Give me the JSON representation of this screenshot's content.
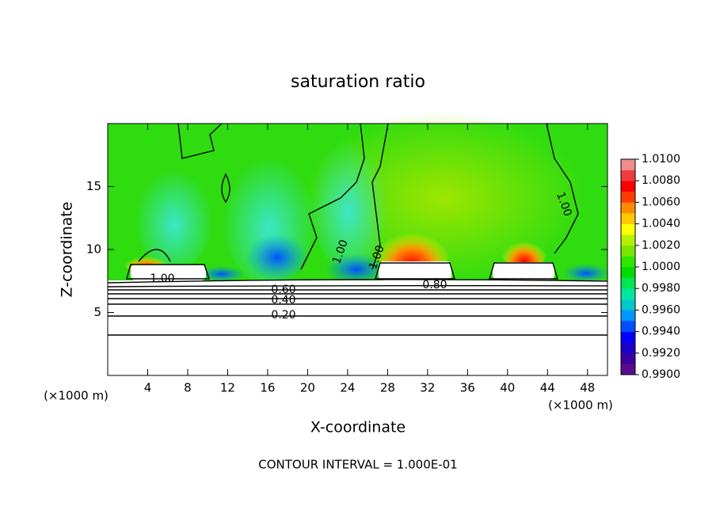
{
  "chart_data": {
    "type": "heatmap",
    "title": "saturation ratio",
    "x_label": "X-coordinate",
    "y_label": "Z-coordinate",
    "x_unit": "(×1000 m)",
    "footer": "CONTOUR INTERVAL = 1.000E-01",
    "xlim": [
      0,
      50
    ],
    "xticks": [
      4,
      8,
      12,
      16,
      20,
      24,
      28,
      32,
      36,
      40,
      44,
      48
    ],
    "ylim": [
      0,
      20
    ],
    "yticks": [
      5,
      10,
      15
    ],
    "contour_labels": [
      "1.00",
      "0.80",
      "0.60",
      "0.40",
      "0.20",
      "1.00",
      "1.00",
      "1.00"
    ],
    "clim": [
      0.99,
      1.01
    ],
    "cticks": [
      {
        "value": 0.99,
        "label": "0.9900"
      },
      {
        "value": 0.992,
        "label": "0.9920"
      },
      {
        "value": 0.994,
        "label": "0.9940"
      },
      {
        "value": 0.996,
        "label": "0.9960"
      },
      {
        "value": 0.998,
        "label": "0.9980"
      },
      {
        "value": 1.0,
        "label": "1.0000"
      },
      {
        "value": 1.002,
        "label": "1.0020"
      },
      {
        "value": 1.004,
        "label": "1.0040"
      },
      {
        "value": 1.006,
        "label": "1.0060"
      },
      {
        "value": 1.008,
        "label": "1.0080"
      },
      {
        "value": 1.01,
        "label": "1.0100"
      }
    ],
    "colors": [
      "#5a0a8c",
      "#3c00a0",
      "#1a00c8",
      "#0000ff",
      "#0050ff",
      "#0096ff",
      "#00c8c8",
      "#00e6a0",
      "#00e650",
      "#00dc00",
      "#32e600",
      "#78e600",
      "#b4f000",
      "#ffff00",
      "#ffc800",
      "#ff8c00",
      "#ff3c00",
      "#ff0000",
      "#f03c3c",
      "#f08c8c"
    ]
  }
}
